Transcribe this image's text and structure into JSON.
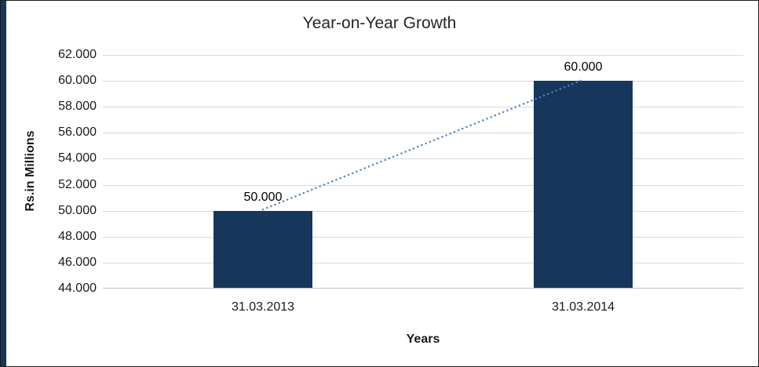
{
  "frame": {
    "background": "#FFFFFF",
    "border_color": "#1A1A1A",
    "left_strip_color": "#16365C"
  },
  "chart_data": {
    "type": "bar",
    "title": "Year-on-Year Growth",
    "xlabel": "Years",
    "ylabel": "Rs.in Millions",
    "categories": [
      "31.03.2013",
      "31.03.2014"
    ],
    "values": [
      50000,
      60000
    ],
    "data_labels": [
      "50.000",
      "60.000"
    ],
    "ylim": [
      44000,
      62000
    ],
    "y_ticks": [
      {
        "value": 44000,
        "label": "44.000"
      },
      {
        "value": 46000,
        "label": "46.000"
      },
      {
        "value": 48000,
        "label": "48.000"
      },
      {
        "value": 50000,
        "label": "50.000"
      },
      {
        "value": 52000,
        "label": "52.000"
      },
      {
        "value": 54000,
        "label": "54.000"
      },
      {
        "value": 56000,
        "label": "56.000"
      },
      {
        "value": 58000,
        "label": "58.000"
      },
      {
        "value": 60000,
        "label": "60.000"
      },
      {
        "value": 62000,
        "label": "62.000"
      }
    ],
    "grid": true,
    "legend": "none",
    "trendline": {
      "style": "dotted",
      "from": "31.03.2013",
      "to": "31.03.2014"
    },
    "colors": {
      "bar": "#16365C",
      "trend": "#4F81BD",
      "gridline": "#D9D9D9",
      "axis_line": "#BFBFBF",
      "text": "#1A1A1A"
    }
  }
}
